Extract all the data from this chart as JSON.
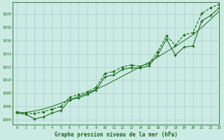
{
  "title": "Graphe pression niveau de la mer (hPa)",
  "bg_color": "#cceae4",
  "grid_color": "#aaccc8",
  "line_color": "#1a6e1a",
  "xlim": [
    -0.5,
    23
  ],
  "ylim": [
    1003.2,
    1021.8
  ],
  "yticks": [
    1004,
    1006,
    1008,
    1010,
    1012,
    1014,
    1016,
    1018,
    1020
  ],
  "xticks": [
    0,
    1,
    2,
    3,
    4,
    5,
    6,
    7,
    8,
    9,
    10,
    11,
    12,
    13,
    14,
    15,
    16,
    17,
    18,
    19,
    20,
    21,
    22,
    23
  ],
  "smooth_line": [
    1005.0,
    1005.1,
    1005.3,
    1005.6,
    1006.0,
    1006.5,
    1007.0,
    1007.5,
    1008.0,
    1008.6,
    1009.2,
    1009.9,
    1010.6,
    1011.3,
    1012.0,
    1012.7,
    1013.5,
    1014.3,
    1015.1,
    1016.0,
    1016.9,
    1018.0,
    1019.2,
    1020.5
  ],
  "marker_line": [
    1005.0,
    1004.8,
    1004.1,
    1004.4,
    1005.0,
    1005.4,
    1007.0,
    1007.3,
    1007.8,
    1008.5,
    1010.5,
    1010.8,
    1011.6,
    1011.9,
    1011.8,
    1012.2,
    1013.8,
    1016.2,
    1013.8,
    1015.0,
    1015.2,
    1019.0,
    1019.8,
    1021.0
  ],
  "upper_line": [
    1005.2,
    1005.0,
    1004.9,
    1005.2,
    1005.6,
    1006.0,
    1007.4,
    1007.8,
    1008.2,
    1008.9,
    1011.0,
    1011.3,
    1012.0,
    1012.3,
    1012.1,
    1012.5,
    1014.3,
    1016.7,
    1015.3,
    1016.9,
    1017.2,
    1020.1,
    1021.0,
    1021.5
  ]
}
